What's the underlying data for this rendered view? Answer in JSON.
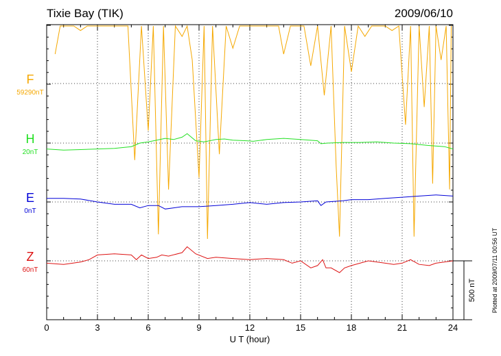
{
  "chart_data": {
    "type": "line",
    "title": "Tixie Bay (TIK)",
    "date": "2009/06/10",
    "xlabel": "U T (hour)",
    "xlim": [
      0,
      24
    ],
    "xticks": [
      "0",
      "3",
      "6",
      "9",
      "12",
      "15",
      "18",
      "21",
      "24"
    ],
    "plotted_note": "Plotted at 2009/07/11 00:56 UT",
    "scale_bar_label": "500 nT",
    "series": [
      {
        "name": "F",
        "baseline": "59290nT",
        "color": "#f5a800",
        "values": [
          {
            "x": 0.5,
            "y": 250
          },
          {
            "x": 0.8,
            "y": 900
          },
          {
            "x": 1.2,
            "y": 600
          },
          {
            "x": 1.6,
            "y": 850
          },
          {
            "x": 2.0,
            "y": 450
          },
          {
            "x": 2.4,
            "y": 900
          },
          {
            "x": 2.8,
            "y": 650
          },
          {
            "x": 3.2,
            "y": 880
          },
          {
            "x": 3.6,
            "y": 550
          },
          {
            "x": 4.0,
            "y": 900
          },
          {
            "x": 4.4,
            "y": 700
          },
          {
            "x": 4.8,
            "y": 850
          },
          {
            "x": 5.2,
            "y": -650
          },
          {
            "x": 5.6,
            "y": 800
          },
          {
            "x": 6.0,
            "y": -400
          },
          {
            "x": 6.3,
            "y": 850
          },
          {
            "x": 6.6,
            "y": -1280
          },
          {
            "x": 6.9,
            "y": 700
          },
          {
            "x": 7.2,
            "y": -900
          },
          {
            "x": 7.6,
            "y": 850
          },
          {
            "x": 8.0,
            "y": 400
          },
          {
            "x": 8.3,
            "y": 900
          },
          {
            "x": 8.6,
            "y": 200
          },
          {
            "x": 9.0,
            "y": -800
          },
          {
            "x": 9.3,
            "y": 880
          },
          {
            "x": 9.5,
            "y": -1320
          },
          {
            "x": 9.8,
            "y": 750
          },
          {
            "x": 10.2,
            "y": -600
          },
          {
            "x": 10.6,
            "y": 850
          },
          {
            "x": 11.0,
            "y": 300
          },
          {
            "x": 11.4,
            "y": 880
          },
          {
            "x": 11.8,
            "y": 500
          },
          {
            "x": 12.2,
            "y": 900
          },
          {
            "x": 12.6,
            "y": 520
          },
          {
            "x": 12.9,
            "y": 880
          },
          {
            "x": 13.3,
            "y": 550
          },
          {
            "x": 13.7,
            "y": 880
          },
          {
            "x": 14.0,
            "y": 250
          },
          {
            "x": 14.4,
            "y": 900
          },
          {
            "x": 14.8,
            "y": 500
          },
          {
            "x": 15.2,
            "y": 880
          },
          {
            "x": 15.6,
            "y": 150
          },
          {
            "x": 16.0,
            "y": 850
          },
          {
            "x": 16.4,
            "y": -100
          },
          {
            "x": 16.8,
            "y": 880
          },
          {
            "x": 17.1,
            "y": -700
          },
          {
            "x": 17.3,
            "y": -1300
          },
          {
            "x": 17.6,
            "y": 600
          },
          {
            "x": 18.0,
            "y": 100
          },
          {
            "x": 18.4,
            "y": 880
          },
          {
            "x": 18.8,
            "y": 400
          },
          {
            "x": 19.2,
            "y": 880
          },
          {
            "x": 19.6,
            "y": 500
          },
          {
            "x": 20.0,
            "y": 900
          },
          {
            "x": 20.4,
            "y": 450
          },
          {
            "x": 20.8,
            "y": 880
          },
          {
            "x": 21.2,
            "y": -350
          },
          {
            "x": 21.5,
            "y": 800
          },
          {
            "x": 21.7,
            "y": -1300
          },
          {
            "x": 22.0,
            "y": 600
          },
          {
            "x": 22.3,
            "y": -200
          },
          {
            "x": 22.6,
            "y": 850
          },
          {
            "x": 22.8,
            "y": -850
          },
          {
            "x": 23.0,
            "y": 880
          },
          {
            "x": 23.3,
            "y": 200
          },
          {
            "x": 23.6,
            "y": 850
          },
          {
            "x": 23.8,
            "y": -900
          },
          {
            "x": 23.9,
            "y": 700
          }
        ]
      },
      {
        "name": "H",
        "baseline": "20nT",
        "color": "#22e022",
        "values": [
          {
            "x": 0.0,
            "y": -50
          },
          {
            "x": 1.0,
            "y": -60
          },
          {
            "x": 2.0,
            "y": -55
          },
          {
            "x": 3.0,
            "y": -50
          },
          {
            "x": 4.0,
            "y": -45
          },
          {
            "x": 5.0,
            "y": -30
          },
          {
            "x": 5.5,
            "y": 0
          },
          {
            "x": 6.0,
            "y": 10
          },
          {
            "x": 6.5,
            "y": 25
          },
          {
            "x": 7.0,
            "y": 40
          },
          {
            "x": 7.5,
            "y": 30
          },
          {
            "x": 8.0,
            "y": 50
          },
          {
            "x": 8.3,
            "y": 80
          },
          {
            "x": 8.8,
            "y": 20
          },
          {
            "x": 9.3,
            "y": 10
          },
          {
            "x": 10.0,
            "y": 30
          },
          {
            "x": 10.5,
            "y": 35
          },
          {
            "x": 11.0,
            "y": 25
          },
          {
            "x": 11.8,
            "y": 20
          },
          {
            "x": 12.2,
            "y": 15
          },
          {
            "x": 13.0,
            "y": 30
          },
          {
            "x": 14.0,
            "y": 40
          },
          {
            "x": 15.0,
            "y": 30
          },
          {
            "x": 16.0,
            "y": 20
          },
          {
            "x": 16.2,
            "y": -5
          },
          {
            "x": 16.6,
            "y": 0
          },
          {
            "x": 17.5,
            "y": 5
          },
          {
            "x": 18.5,
            "y": 5
          },
          {
            "x": 19.5,
            "y": 10
          },
          {
            "x": 20.5,
            "y": 0
          },
          {
            "x": 21.5,
            "y": -5
          },
          {
            "x": 22.5,
            "y": -20
          },
          {
            "x": 23.5,
            "y": -30
          },
          {
            "x": 24.0,
            "y": -50
          }
        ]
      },
      {
        "name": "E",
        "baseline": "0nT",
        "color": "#0000d8",
        "values": [
          {
            "x": 0.0,
            "y": 30
          },
          {
            "x": 1.0,
            "y": 30
          },
          {
            "x": 2.0,
            "y": 25
          },
          {
            "x": 3.0,
            "y": 0
          },
          {
            "x": 4.0,
            "y": -20
          },
          {
            "x": 5.0,
            "y": -20
          },
          {
            "x": 5.5,
            "y": -50
          },
          {
            "x": 6.0,
            "y": -30
          },
          {
            "x": 6.6,
            "y": -30
          },
          {
            "x": 7.0,
            "y": -60
          },
          {
            "x": 8.0,
            "y": -40
          },
          {
            "x": 9.0,
            "y": -40
          },
          {
            "x": 10.0,
            "y": -30
          },
          {
            "x": 11.0,
            "y": -20
          },
          {
            "x": 12.0,
            "y": -5
          },
          {
            "x": 13.0,
            "y": -20
          },
          {
            "x": 14.0,
            "y": -5
          },
          {
            "x": 15.0,
            "y": 0
          },
          {
            "x": 16.0,
            "y": 10
          },
          {
            "x": 16.2,
            "y": -30
          },
          {
            "x": 16.5,
            "y": 0
          },
          {
            "x": 17.0,
            "y": 5
          },
          {
            "x": 17.5,
            "y": 10
          },
          {
            "x": 18.0,
            "y": 20
          },
          {
            "x": 19.0,
            "y": 20
          },
          {
            "x": 20.0,
            "y": 30
          },
          {
            "x": 21.0,
            "y": 40
          },
          {
            "x": 22.0,
            "y": 50
          },
          {
            "x": 23.0,
            "y": 60
          },
          {
            "x": 24.0,
            "y": 50
          }
        ]
      },
      {
        "name": "Z",
        "baseline": "60nT",
        "color": "#dd1111",
        "values": [
          {
            "x": 0.0,
            "y": -20
          },
          {
            "x": 1.0,
            "y": -30
          },
          {
            "x": 2.0,
            "y": -10
          },
          {
            "x": 2.5,
            "y": 10
          },
          {
            "x": 3.0,
            "y": 50
          },
          {
            "x": 4.0,
            "y": 60
          },
          {
            "x": 5.0,
            "y": 50
          },
          {
            "x": 5.3,
            "y": 10
          },
          {
            "x": 5.6,
            "y": 50
          },
          {
            "x": 6.0,
            "y": 20
          },
          {
            "x": 6.5,
            "y": 30
          },
          {
            "x": 6.8,
            "y": 50
          },
          {
            "x": 7.2,
            "y": 40
          },
          {
            "x": 8.0,
            "y": 70
          },
          {
            "x": 8.3,
            "y": 120
          },
          {
            "x": 8.8,
            "y": 60
          },
          {
            "x": 9.5,
            "y": 20
          },
          {
            "x": 10.0,
            "y": 30
          },
          {
            "x": 11.0,
            "y": 20
          },
          {
            "x": 12.0,
            "y": 10
          },
          {
            "x": 13.0,
            "y": 20
          },
          {
            "x": 14.0,
            "y": 10
          },
          {
            "x": 14.5,
            "y": -20
          },
          {
            "x": 15.0,
            "y": 0
          },
          {
            "x": 15.6,
            "y": -60
          },
          {
            "x": 16.0,
            "y": -40
          },
          {
            "x": 16.3,
            "y": 10
          },
          {
            "x": 16.5,
            "y": -60
          },
          {
            "x": 16.8,
            "y": -60
          },
          {
            "x": 17.3,
            "y": -100
          },
          {
            "x": 17.6,
            "y": -60
          },
          {
            "x": 18.0,
            "y": -40
          },
          {
            "x": 19.0,
            "y": 0
          },
          {
            "x": 20.0,
            "y": -20
          },
          {
            "x": 20.5,
            "y": -30
          },
          {
            "x": 21.0,
            "y": -20
          },
          {
            "x": 21.5,
            "y": 10
          },
          {
            "x": 22.0,
            "y": -30
          },
          {
            "x": 22.6,
            "y": -40
          },
          {
            "x": 23.0,
            "y": -20
          },
          {
            "x": 24.0,
            "y": 0
          }
        ]
      }
    ]
  }
}
